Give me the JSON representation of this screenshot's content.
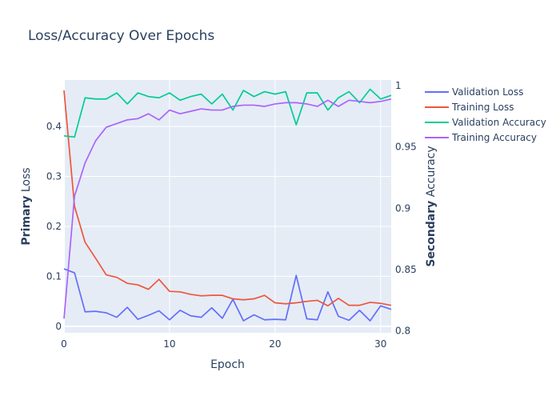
{
  "chart_data": {
    "type": "line",
    "title": "Loss/Accuracy Over Epochs",
    "xlabel": "Epoch",
    "ylabel_primary": {
      "bold": "Primary",
      "rest": " Loss"
    },
    "ylabel_secondary": {
      "bold": "Secondary",
      "rest": " Accuracy"
    },
    "xlim": [
      0,
      31
    ],
    "ylim_primary": [
      -0.013,
      0.493
    ],
    "ylim_secondary": [
      0.7985,
      1.0045
    ],
    "x_ticks": [
      0,
      10,
      20,
      30
    ],
    "y_ticks_primary": [
      0,
      0.1,
      0.2,
      0.3,
      0.4
    ],
    "y_ticks_primary_labels": [
      "0",
      "0.1",
      "0.2",
      "0.3",
      "0.4"
    ],
    "y_ticks_secondary": [
      0.8,
      0.85,
      0.9,
      0.95,
      1.0
    ],
    "y_ticks_secondary_labels": [
      "0.8",
      "0.85",
      "0.9",
      "0.95",
      "1"
    ],
    "x": [
      0,
      1,
      2,
      3,
      4,
      5,
      6,
      7,
      8,
      9,
      10,
      11,
      12,
      13,
      14,
      15,
      16,
      17,
      18,
      19,
      20,
      21,
      22,
      23,
      24,
      25,
      26,
      27,
      28,
      29,
      30,
      31
    ],
    "series": [
      {
        "name": "Validation Loss",
        "axis": "primary",
        "color": "#636efa",
        "values": [
          0.115,
          0.107,
          0.029,
          0.03,
          0.027,
          0.018,
          0.038,
          0.014,
          0.022,
          0.031,
          0.013,
          0.032,
          0.021,
          0.018,
          0.037,
          0.016,
          0.054,
          0.011,
          0.023,
          0.013,
          0.014,
          0.013,
          0.102,
          0.015,
          0.013,
          0.069,
          0.02,
          0.012,
          0.032,
          0.011,
          0.041,
          0.034
        ]
      },
      {
        "name": "Training Loss",
        "axis": "primary",
        "color": "#ef553b",
        "values": [
          0.472,
          0.24,
          0.168,
          0.136,
          0.103,
          0.098,
          0.086,
          0.083,
          0.074,
          0.094,
          0.07,
          0.069,
          0.064,
          0.061,
          0.062,
          0.062,
          0.055,
          0.053,
          0.055,
          0.062,
          0.047,
          0.045,
          0.047,
          0.05,
          0.052,
          0.041,
          0.056,
          0.042,
          0.042,
          0.048,
          0.046,
          0.042
        ]
      },
      {
        "name": "Validation Accuracy",
        "axis": "secondary",
        "color": "#00cc96",
        "values": [
          0.959,
          0.958,
          0.99,
          0.989,
          0.989,
          0.994,
          0.985,
          0.994,
          0.991,
          0.99,
          0.994,
          0.988,
          0.991,
          0.993,
          0.985,
          0.993,
          0.98,
          0.996,
          0.991,
          0.995,
          0.993,
          0.995,
          0.968,
          0.994,
          0.994,
          0.98,
          0.99,
          0.995,
          0.986,
          0.997,
          0.989,
          0.992
        ]
      },
      {
        "name": "Training Accuracy",
        "axis": "secondary",
        "color": "#ab63fa",
        "values": [
          0.81,
          0.91,
          0.937,
          0.955,
          0.966,
          0.969,
          0.972,
          0.973,
          0.977,
          0.972,
          0.98,
          0.977,
          0.979,
          0.981,
          0.98,
          0.98,
          0.983,
          0.984,
          0.984,
          0.983,
          0.985,
          0.986,
          0.986,
          0.985,
          0.983,
          0.988,
          0.983,
          0.988,
          0.987,
          0.986,
          0.987,
          0.989
        ]
      }
    ],
    "legend_position": "right",
    "grid": true
  }
}
